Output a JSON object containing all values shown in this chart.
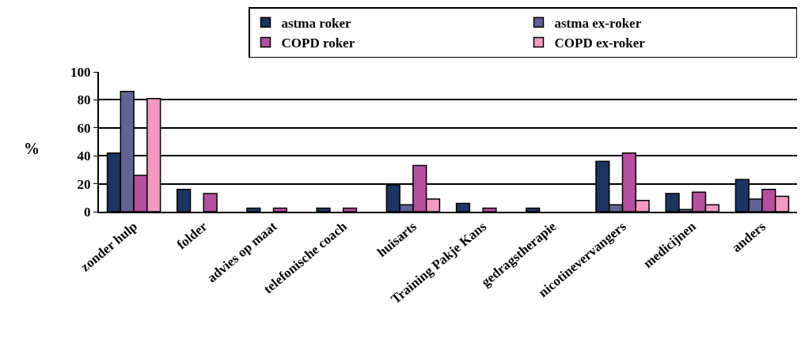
{
  "chart_data": {
    "type": "bar",
    "ylabel": "%",
    "categories": [
      "zonder hulp",
      "folder",
      "advies op maat",
      "telefonische coach",
      "huisarts",
      "Training Pakje Kans",
      "gedragstherapie",
      "nicotinevervangers",
      "medicijnen",
      "anders"
    ],
    "series": [
      {
        "name": "astma roker",
        "color": "#1c3461",
        "values": [
          42,
          16,
          2.5,
          2.5,
          19,
          6,
          2.5,
          36,
          13,
          23
        ]
      },
      {
        "name": "astma ex-roker",
        "color": "#636294",
        "values": [
          86,
          0,
          0,
          0,
          5,
          0,
          0,
          5,
          1.5,
          9
        ]
      },
      {
        "name": "COPD roker",
        "color": "#b5509e",
        "values": [
          26,
          13,
          2.5,
          2.5,
          33,
          2.5,
          0,
          42,
          14,
          16
        ]
      },
      {
        "name": "COPD ex-roker",
        "color": "#f29ac0",
        "values": [
          81,
          0,
          0,
          0,
          9,
          0,
          0,
          8,
          5,
          11
        ]
      }
    ],
    "ylim": [
      0,
      100
    ],
    "yticks": [
      0,
      20,
      40,
      60,
      80,
      100
    ],
    "grid": "y",
    "legend": "top right"
  }
}
